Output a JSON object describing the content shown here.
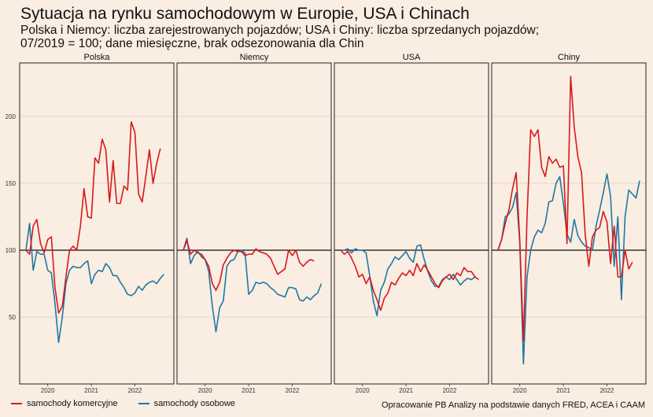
{
  "title": "Sytuacja na rynku samochodowym w Europie, USA i Chinach",
  "subtitle_line1": "Polska i Niemcy: liczba zarejestrowanych pojazdów; USA i Chiny: liczba sprzedanych pojazdów;",
  "subtitle_line2": "07/2019 = 100; dane miesięczne, brak odsezonowania dla Chin",
  "source": "Opracowanie PB Analizy na podstawie danych FRED, ACEA i CAAM",
  "legend": [
    {
      "label": "samochody komercyjne",
      "color": "#D7191C"
    },
    {
      "label": "samochody osobowe",
      "color": "#1F78A4"
    }
  ],
  "chart_data": {
    "type": "line",
    "x_start": "2019-07",
    "x_end": "2022-10",
    "x_ticks": [
      "2020",
      "2021",
      "2022"
    ],
    "y_ticks": [
      50,
      100,
      150,
      200
    ],
    "ylim": [
      0,
      240
    ],
    "reference_line": 100,
    "panels": [
      {
        "name": "Polska",
        "series": [
          {
            "name": "samochody komercyjne",
            "values": [
              100,
              97,
              118,
              123,
              105,
              98,
              108,
              110,
              72,
              53,
              58,
              80,
              100,
              103,
              100,
              118,
              146,
              125,
              124,
              169,
              165,
              183,
              175,
              136,
              167,
              135,
              135,
              148,
              145,
              196,
              188,
              142,
              136,
              155,
              175,
              150,
              165,
              176
            ]
          },
          {
            "name": "samochody osobowe",
            "values": [
              100,
              120,
              85,
              99,
              97,
              97,
              85,
              83,
              60,
              31,
              50,
              75,
              85,
              88,
              87,
              87,
              90,
              92,
              75,
              82,
              85,
              84,
              90,
              87,
              81,
              81,
              76,
              72,
              67,
              66,
              68,
              73,
              70,
              74,
              76,
              77,
              75,
              79,
              82
            ]
          }
        ]
      },
      {
        "name": "Niemcy",
        "series": [
          {
            "name": "samochody komercyjne",
            "values": [
              100,
              107,
              97,
              100,
              98,
              97,
              93,
              88,
              75,
              70,
              76,
              89,
              94,
              98,
              100,
              99,
              99,
              96,
              97,
              97,
              101,
              99,
              98,
              97,
              94,
              88,
              82,
              84,
              86,
              100,
              96,
              100,
              91,
              88,
              91,
              93,
              92
            ]
          },
          {
            "name": "samochody osobowe",
            "values": [
              100,
              109,
              90,
              96,
              99,
              95,
              93,
              84,
              58,
              39,
              57,
              62,
              88,
              92,
              93,
              99,
              100,
              98,
              67,
              70,
              76,
              75,
              76,
              75,
              72,
              70,
              67,
              66,
              65,
              72,
              72,
              71,
              63,
              62,
              65,
              63,
              66,
              68,
              75
            ]
          }
        ]
      },
      {
        "name": "USA",
        "series": [
          {
            "name": "samochody komercyjne",
            "values": [
              100,
              97,
              99,
              94,
              88,
              80,
              82,
              75,
              80,
              70,
              63,
              55,
              64,
              68,
              76,
              74,
              79,
              83,
              81,
              85,
              81,
              90,
              84,
              89,
              85,
              80,
              75,
              72,
              77,
              80,
              82,
              78,
              83,
              81,
              87,
              84,
              84,
              80,
              78
            ]
          },
          {
            "name": "samochody osobowe",
            "values": [
              100,
              100,
              101,
              98,
              101,
              100,
              100,
              98,
              81,
              62,
              51,
              70,
              76,
              86,
              90,
              95,
              93,
              96,
              99,
              94,
              91,
              103,
              104,
              93,
              84,
              77,
              73,
              73,
              78,
              80,
              78,
              82,
              78,
              74,
              77,
              79,
              78,
              80
            ]
          }
        ]
      },
      {
        "name": "Chiny",
        "series": [
          {
            "name": "samochody komercyjne",
            "values": [
              100,
              108,
              120,
              130,
              146,
              158,
              107,
              32,
              125,
              190,
              185,
              190,
              162,
              155,
              170,
              165,
              168,
              162,
              163,
              105,
              230,
              192,
              170,
              158,
              112,
              88,
              110,
              115,
              117,
              129,
              121,
              90,
              118,
              80,
              80,
              100,
              86,
              91
            ]
          },
          {
            "name": "samochody osobowe",
            "values": [
              100,
              108,
              125,
              127,
              132,
              143,
              105,
              15,
              80,
              100,
              110,
              115,
              113,
              120,
              136,
              137,
              150,
              155,
              135,
              112,
              106,
              123,
              111,
              106,
              103,
              102,
              100,
              118,
              130,
              143,
              157,
              140,
              88,
              125,
              63,
              125,
              145,
              142,
              139,
              152
            ]
          }
        ]
      }
    ]
  }
}
